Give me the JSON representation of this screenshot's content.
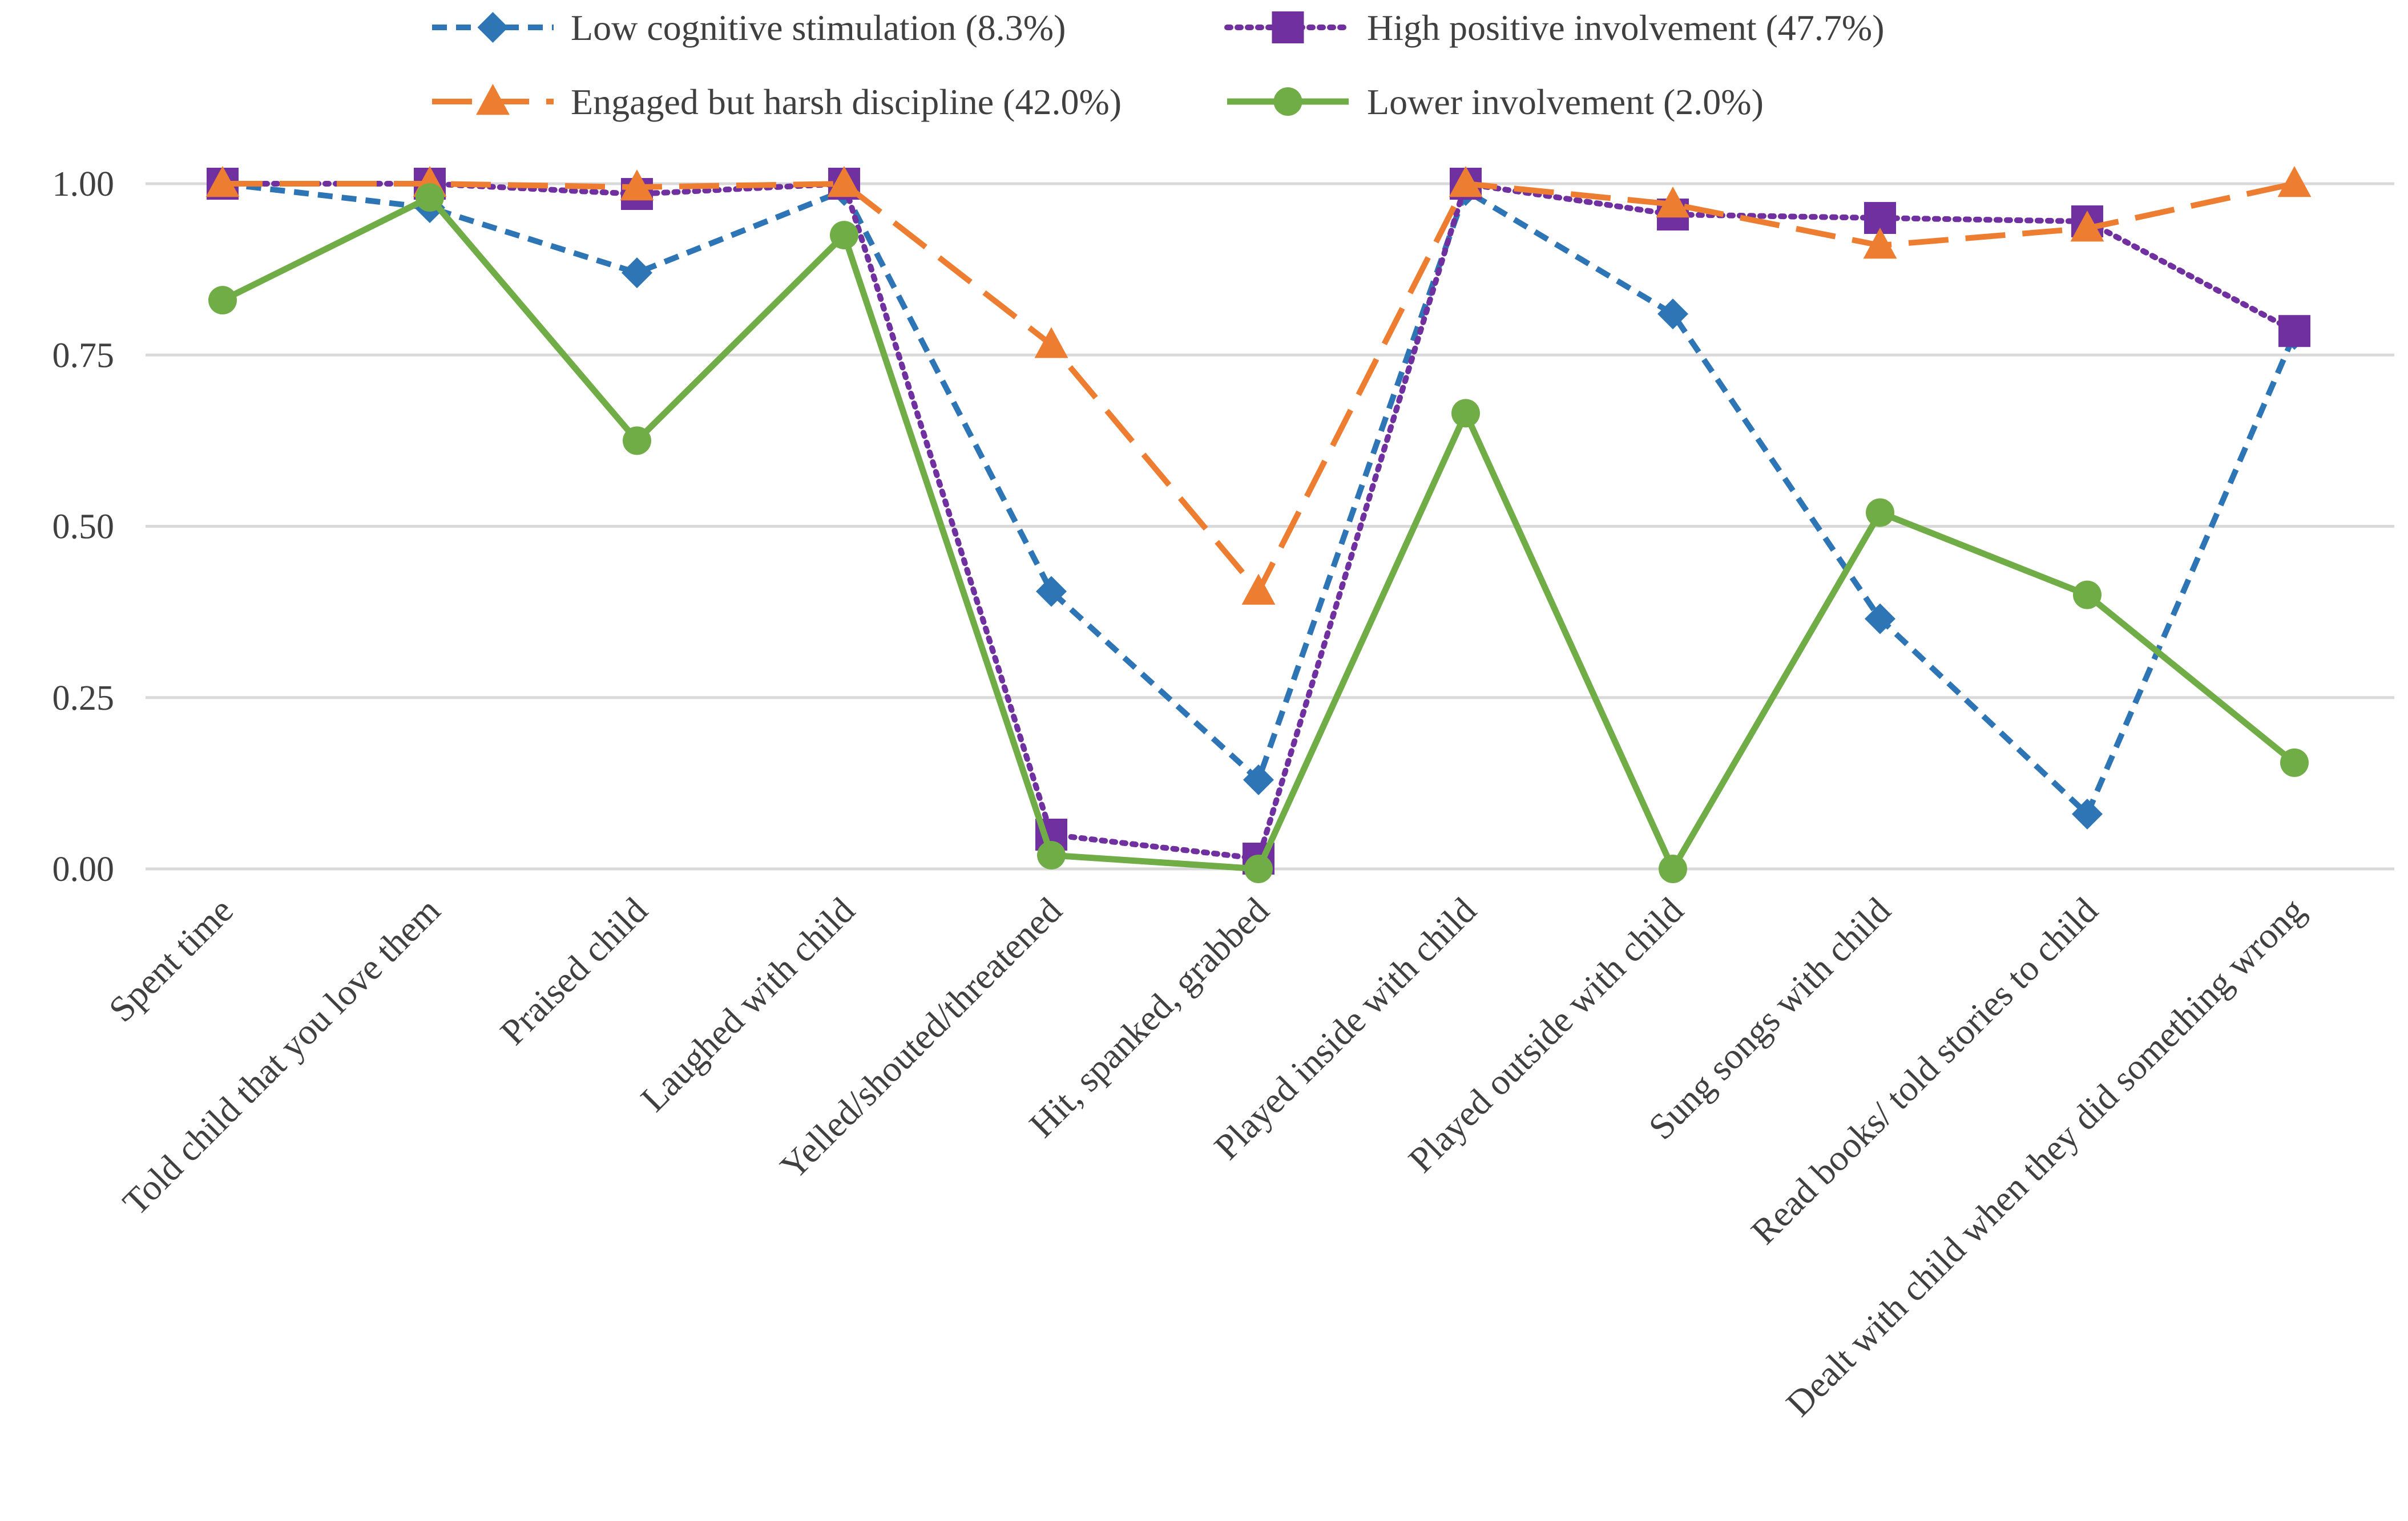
{
  "chart_data": {
    "type": "line",
    "title": "",
    "xlabel": "",
    "ylabel": "",
    "ylim": [
      0,
      1
    ],
    "yticks": [
      0,
      0.25,
      0.5,
      0.75,
      1
    ],
    "ytick_labels": [
      "0.00",
      "0.25",
      "0.50",
      "0.75",
      "1.00"
    ],
    "grid": true,
    "legend_position": "top",
    "categories": [
      "Spent time",
      "Told child that you love them",
      "Praised child",
      "Laughed with child",
      "Yelled/shouted/threatened",
      "Hit, spanked, grabbed",
      "Played inside with child",
      "Played outside with child",
      "Sung songs with child",
      "Read books/ told stories to child",
      "Dealt with child when they did something wrong"
    ],
    "series": [
      {
        "name": "Low cognitive stimulation (8.3%)",
        "color": "#2e75b6",
        "dash": "dashed",
        "marker": "diamond",
        "values": [
          1.0,
          0.965,
          0.87,
          0.99,
          0.405,
          0.13,
          0.99,
          0.81,
          0.365,
          0.08,
          0.78
        ]
      },
      {
        "name": "High positive involvement (47.7%)",
        "color": "#7030a0",
        "dash": "dotted",
        "marker": "square",
        "values": [
          1.0,
          1.0,
          0.985,
          1.0,
          0.05,
          0.015,
          1.0,
          0.955,
          0.95,
          0.945,
          0.785
        ]
      },
      {
        "name": "Engaged but harsh discipline (42.0%)",
        "color": "#ed7d31",
        "dash": "longdash",
        "marker": "triangle",
        "values": [
          1.0,
          1.0,
          0.995,
          1.0,
          0.765,
          0.405,
          1.0,
          0.97,
          0.91,
          0.935,
          1.0
        ]
      },
      {
        "name": "Lower involvement (2.0%)",
        "color": "#70ad47",
        "dash": "solid",
        "marker": "circle",
        "values": [
          0.83,
          0.98,
          0.625,
          0.925,
          0.02,
          0.0,
          0.665,
          0.0,
          0.52,
          0.4,
          0.155
        ]
      }
    ]
  }
}
